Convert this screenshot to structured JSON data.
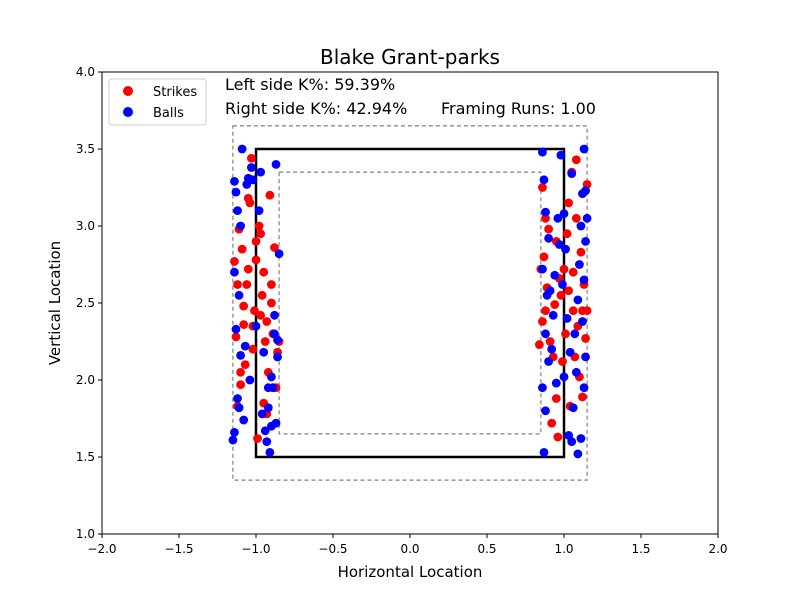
{
  "chart_data": {
    "type": "scatter",
    "title": "Blake Grant-parks",
    "xlabel": "Horizontal Location",
    "ylabel": "Vertical Location",
    "xlim": [
      -2.0,
      2.0
    ],
    "ylim": [
      1.0,
      4.0
    ],
    "xticks": [
      "−2.0",
      "−1.5",
      "−1.0",
      "−0.5",
      "0.0",
      "0.5",
      "1.0",
      "1.5",
      "2.0"
    ],
    "yticks": [
      "1.0",
      "1.5",
      "2.0",
      "2.5",
      "3.0",
      "3.5",
      "4.0"
    ],
    "grid": false,
    "legend_position": "top-left",
    "annotations": {
      "left_k": "Left side K%: 59.39%",
      "right_k": "Right side K%: 42.94%",
      "framing": "Framing Runs: 1.00"
    },
    "zones": {
      "strike_zone": {
        "x": [
          -1.0,
          1.0
        ],
        "y": [
          1.5,
          3.5
        ]
      },
      "outer_zone": {
        "x": [
          -1.15,
          1.15
        ],
        "y": [
          1.35,
          3.65
        ]
      },
      "inner_zone": {
        "x": [
          -0.85,
          0.85
        ],
        "y": [
          1.65,
          3.35
        ]
      }
    },
    "series": [
      {
        "name": "Strikes",
        "color": "#ff0000",
        "points": [
          [
            -1.12,
            1.83
          ],
          [
            -1.1,
            1.97
          ],
          [
            -1.13,
            2.28
          ],
          [
            -1.08,
            2.48
          ],
          [
            -1.12,
            2.62
          ],
          [
            -1.14,
            2.77
          ],
          [
            -1.09,
            2.85
          ],
          [
            -1.11,
            2.98
          ],
          [
            -1.05,
            3.18
          ],
          [
            -1.03,
            3.44
          ],
          [
            -1.07,
            2.1
          ],
          [
            -1.02,
            2.35
          ],
          [
            -1.05,
            2.72
          ],
          [
            -1.0,
            2.9
          ],
          [
            -0.98,
            3.0
          ],
          [
            -0.96,
            2.55
          ],
          [
            -0.94,
            2.25
          ],
          [
            -0.92,
            2.05
          ],
          [
            -0.9,
            2.62
          ],
          [
            -0.88,
            2.86
          ],
          [
            -0.86,
            2.18
          ],
          [
            -0.95,
            1.85
          ],
          [
            -0.99,
            1.62
          ],
          [
            -1.01,
            2.45
          ],
          [
            -0.93,
            2.38
          ],
          [
            -0.97,
            2.95
          ],
          [
            -0.89,
            2.3
          ],
          [
            -1.04,
            3.15
          ],
          [
            -0.91,
            3.2
          ],
          [
            -0.87,
            1.95
          ],
          [
            -1.06,
            2.62
          ],
          [
            -0.95,
            2.7
          ],
          [
            -1.02,
            2.2
          ],
          [
            -0.9,
            2.5
          ],
          [
            -1.08,
            2.36
          ],
          [
            -0.85,
            2.25
          ],
          [
            -0.93,
            1.78
          ],
          [
            -1.0,
            2.78
          ],
          [
            -0.97,
            2.42
          ],
          [
            -1.1,
            2.05
          ],
          [
            0.86,
            3.25
          ],
          [
            0.88,
            3.05
          ],
          [
            0.9,
            2.98
          ],
          [
            0.87,
            2.8
          ],
          [
            0.89,
            2.6
          ],
          [
            0.86,
            2.38
          ],
          [
            0.91,
            2.25
          ],
          [
            0.93,
            2.15
          ],
          [
            0.95,
            1.88
          ],
          [
            0.92,
            1.72
          ],
          [
            0.96,
            1.63
          ],
          [
            0.98,
            2.55
          ],
          [
            1.0,
            2.72
          ],
          [
            1.02,
            2.95
          ],
          [
            1.03,
            3.15
          ],
          [
            1.05,
            3.35
          ],
          [
            1.08,
            3.43
          ],
          [
            1.06,
            2.45
          ],
          [
            1.09,
            2.35
          ],
          [
            1.07,
            2.15
          ],
          [
            1.1,
            2.02
          ],
          [
            1.12,
            1.89
          ],
          [
            1.14,
            2.27
          ],
          [
            1.15,
            2.45
          ],
          [
            1.13,
            2.62
          ],
          [
            1.11,
            2.83
          ],
          [
            1.15,
            3.27
          ],
          [
            1.08,
            3.05
          ],
          [
            0.94,
            2.49
          ],
          [
            0.97,
            2.66
          ],
          [
            1.04,
            1.83
          ],
          [
            1.01,
            2.3
          ],
          [
            0.99,
            2.12
          ],
          [
            0.85,
            2.72
          ],
          [
            0.84,
            2.23
          ],
          [
            1.12,
            2.45
          ],
          [
            1.03,
            2.58
          ],
          [
            0.95,
            2.9
          ],
          [
            1.06,
            2.7
          ],
          [
            0.88,
            2.45
          ]
        ]
      },
      {
        "name": "Balls",
        "color": "#0000ff",
        "points": [
          [
            -1.15,
            1.61
          ],
          [
            -1.14,
            1.66
          ],
          [
            -1.12,
            1.88
          ],
          [
            -1.1,
            2.16
          ],
          [
            -1.13,
            2.33
          ],
          [
            -1.11,
            2.55
          ],
          [
            -1.14,
            2.7
          ],
          [
            -1.12,
            3.1
          ],
          [
            -1.13,
            3.22
          ],
          [
            -1.14,
            3.29
          ],
          [
            -1.1,
            3.0
          ],
          [
            -1.06,
            3.27
          ],
          [
            -1.03,
            3.38
          ],
          [
            -1.05,
            3.31
          ],
          [
            -1.08,
            1.74
          ],
          [
            -1.02,
            3.3
          ],
          [
            -0.98,
            3.1
          ],
          [
            -0.97,
            3.35
          ],
          [
            -0.87,
            3.4
          ],
          [
            -0.85,
            2.82
          ],
          [
            -0.88,
            2.42
          ],
          [
            -0.86,
            2.26
          ],
          [
            -0.9,
            2.02
          ],
          [
            -0.92,
            1.82
          ],
          [
            -0.94,
            1.67
          ],
          [
            -0.91,
            1.53
          ],
          [
            -0.87,
            1.72
          ],
          [
            -0.89,
            1.95
          ],
          [
            -0.95,
            2.18
          ],
          [
            -0.93,
            1.6
          ],
          [
            -0.96,
            1.78
          ],
          [
            -1.09,
            3.5
          ],
          [
            -1.0,
            2.35
          ],
          [
            -0.88,
            2.3
          ],
          [
            -1.04,
            2.0
          ],
          [
            -0.9,
            1.7
          ],
          [
            -1.11,
            1.82
          ],
          [
            -0.92,
            1.95
          ],
          [
            -0.86,
            2.15
          ],
          [
            -1.07,
            2.22
          ],
          [
            0.86,
            3.48
          ],
          [
            0.87,
            3.3
          ],
          [
            0.88,
            3.09
          ],
          [
            0.9,
            2.92
          ],
          [
            0.86,
            2.72
          ],
          [
            0.89,
            2.55
          ],
          [
            0.88,
            2.3
          ],
          [
            0.9,
            2.12
          ],
          [
            0.86,
            1.95
          ],
          [
            0.88,
            1.8
          ],
          [
            0.87,
            1.53
          ],
          [
            0.92,
            2.2
          ],
          [
            0.93,
            2.42
          ],
          [
            0.94,
            2.68
          ],
          [
            0.96,
            3.05
          ],
          [
            0.98,
            3.46
          ],
          [
            1.0,
            3.08
          ],
          [
            1.01,
            2.85
          ],
          [
            1.02,
            2.4
          ],
          [
            1.0,
            2.02
          ],
          [
            1.03,
            1.64
          ],
          [
            1.05,
            1.6
          ],
          [
            1.06,
            1.82
          ],
          [
            1.08,
            2.05
          ],
          [
            1.07,
            2.3
          ],
          [
            1.09,
            2.52
          ],
          [
            1.1,
            2.75
          ],
          [
            1.11,
            3.0
          ],
          [
            1.12,
            3.21
          ],
          [
            1.13,
            3.5
          ],
          [
            1.14,
            3.23
          ],
          [
            1.15,
            3.05
          ],
          [
            1.14,
            2.9
          ],
          [
            1.13,
            2.65
          ],
          [
            1.12,
            2.38
          ],
          [
            1.14,
            2.15
          ],
          [
            1.13,
            1.95
          ],
          [
            1.11,
            1.62
          ],
          [
            1.09,
            1.52
          ],
          [
            0.97,
            2.88
          ],
          [
            0.99,
            2.62
          ],
          [
            1.04,
            2.18
          ],
          [
            0.95,
            1.98
          ],
          [
            0.91,
            2.58
          ],
          [
            1.05,
            3.34
          ]
        ]
      }
    ]
  }
}
